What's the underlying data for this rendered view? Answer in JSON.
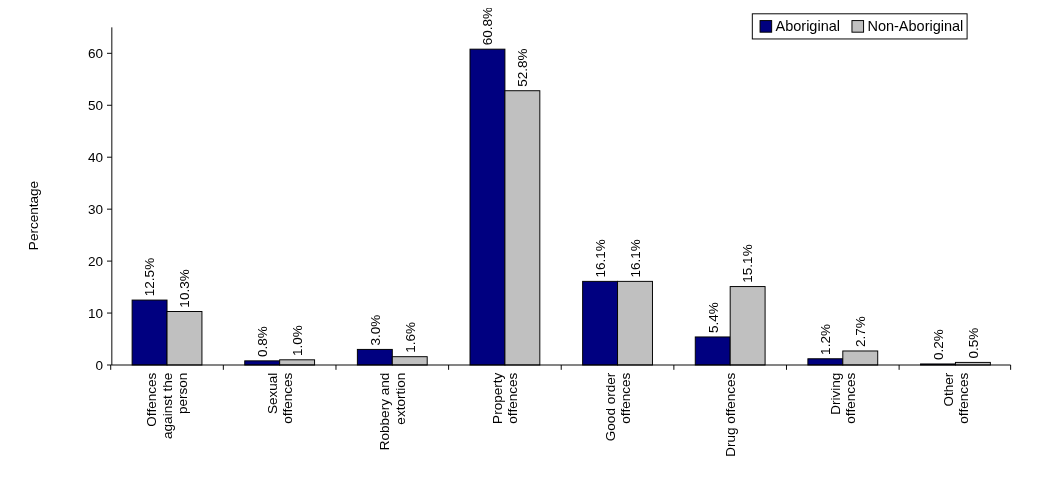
{
  "chart_data": {
    "type": "bar",
    "ylabel": "Percentage",
    "categories": [
      "Offences against the person",
      "Sexual offences",
      "Robbery and extortion",
      "Property offences",
      "Good order offences",
      "Drug offences",
      "Driving offences",
      "Other offences"
    ],
    "series": [
      {
        "name": "Aboriginal",
        "color": "#000080",
        "values": [
          12.5,
          0.8,
          3.0,
          60.8,
          16.1,
          5.4,
          1.2,
          0.2
        ],
        "value_labels": [
          "12.5%",
          "0.8%",
          "3.0%",
          "60.8%",
          "16.1%",
          "5.4%",
          "1.2%",
          "0.2%"
        ]
      },
      {
        "name": "Non-Aboriginal",
        "color": "#c0c0c0",
        "values": [
          10.3,
          1.0,
          1.6,
          52.8,
          16.1,
          15.1,
          2.7,
          0.5
        ],
        "value_labels": [
          "10.3%",
          "1.0%",
          "1.6%",
          "52.8%",
          "16.1%",
          "15.1%",
          "2.7%",
          "0.5%"
        ]
      }
    ],
    "ylim": [
      0,
      65
    ],
    "yticks": [
      0,
      10,
      20,
      30,
      40,
      50,
      60
    ],
    "grid": false,
    "legend": "top right"
  }
}
